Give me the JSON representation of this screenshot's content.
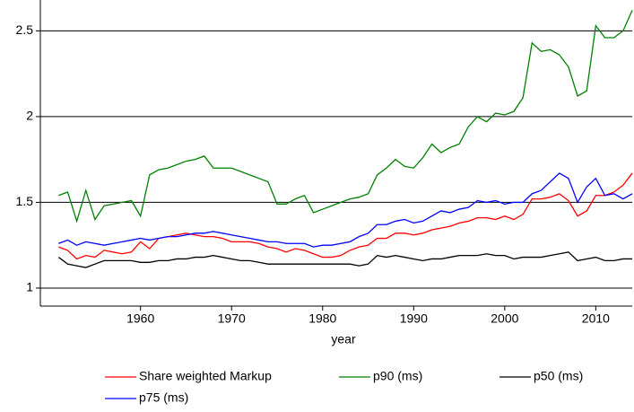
{
  "chart_data": {
    "type": "line",
    "x_label": "year",
    "x": [
      1951,
      1952,
      1953,
      1954,
      1955,
      1956,
      1957,
      1958,
      1959,
      1960,
      1961,
      1962,
      1963,
      1964,
      1965,
      1966,
      1967,
      1968,
      1969,
      1970,
      1971,
      1972,
      1973,
      1974,
      1975,
      1976,
      1977,
      1978,
      1979,
      1980,
      1981,
      1982,
      1983,
      1984,
      1985,
      1986,
      1987,
      1988,
      1989,
      1990,
      1991,
      1992,
      1993,
      1994,
      1995,
      1996,
      1997,
      1998,
      1999,
      2000,
      2001,
      2002,
      2003,
      2004,
      2005,
      2006,
      2007,
      2008,
      2009,
      2010,
      2011,
      2012,
      2013,
      2014
    ],
    "series": [
      {
        "name": "Share weighted Markup",
        "color": "#ff0000",
        "values": [
          1.24,
          1.22,
          1.17,
          1.19,
          1.18,
          1.22,
          1.21,
          1.2,
          1.21,
          1.27,
          1.23,
          1.29,
          1.3,
          1.31,
          1.32,
          1.31,
          1.3,
          1.3,
          1.29,
          1.27,
          1.27,
          1.27,
          1.26,
          1.24,
          1.23,
          1.21,
          1.23,
          1.22,
          1.2,
          1.18,
          1.18,
          1.19,
          1.22,
          1.24,
          1.25,
          1.29,
          1.29,
          1.32,
          1.32,
          1.31,
          1.32,
          1.34,
          1.35,
          1.36,
          1.38,
          1.39,
          1.41,
          1.41,
          1.4,
          1.42,
          1.4,
          1.43,
          1.52,
          1.52,
          1.53,
          1.55,
          1.51,
          1.42,
          1.45,
          1.54,
          1.54,
          1.56,
          1.6,
          1.67
        ]
      },
      {
        "name": "p90 (ms)",
        "color": "#008000",
        "values": [
          1.54,
          1.56,
          1.39,
          1.57,
          1.4,
          1.48,
          1.49,
          1.5,
          1.51,
          1.42,
          1.66,
          1.69,
          1.7,
          1.72,
          1.74,
          1.75,
          1.77,
          1.7,
          1.7,
          1.7,
          1.68,
          1.66,
          1.64,
          1.62,
          1.49,
          1.49,
          1.52,
          1.54,
          1.44,
          1.46,
          1.48,
          1.5,
          1.52,
          1.53,
          1.55,
          1.66,
          1.7,
          1.75,
          1.71,
          1.7,
          1.76,
          1.84,
          1.79,
          1.82,
          1.84,
          1.94,
          2.0,
          1.97,
          2.02,
          2.01,
          2.03,
          2.11,
          2.43,
          2.38,
          2.39,
          2.36,
          2.29,
          2.12,
          2.15,
          2.53,
          2.46,
          2.46,
          2.5,
          2.62
        ]
      },
      {
        "name": "p50 (ms)",
        "color": "#000000",
        "values": [
          1.18,
          1.14,
          1.13,
          1.12,
          1.14,
          1.16,
          1.16,
          1.16,
          1.16,
          1.15,
          1.15,
          1.16,
          1.16,
          1.17,
          1.17,
          1.18,
          1.18,
          1.19,
          1.18,
          1.17,
          1.16,
          1.16,
          1.15,
          1.14,
          1.14,
          1.14,
          1.14,
          1.14,
          1.14,
          1.14,
          1.14,
          1.14,
          1.14,
          1.13,
          1.14,
          1.19,
          1.18,
          1.19,
          1.18,
          1.17,
          1.16,
          1.17,
          1.17,
          1.18,
          1.19,
          1.19,
          1.19,
          1.2,
          1.19,
          1.19,
          1.17,
          1.18,
          1.18,
          1.18,
          1.19,
          1.2,
          1.21,
          1.16,
          1.17,
          1.18,
          1.16,
          1.16,
          1.17,
          1.17
        ]
      },
      {
        "name": "p75 (ms)",
        "color": "#0000ff",
        "values": [
          1.26,
          1.28,
          1.25,
          1.27,
          1.26,
          1.25,
          1.26,
          1.27,
          1.28,
          1.29,
          1.28,
          1.29,
          1.3,
          1.3,
          1.31,
          1.32,
          1.32,
          1.33,
          1.32,
          1.31,
          1.3,
          1.29,
          1.28,
          1.27,
          1.27,
          1.26,
          1.26,
          1.26,
          1.24,
          1.25,
          1.25,
          1.26,
          1.27,
          1.3,
          1.32,
          1.37,
          1.37,
          1.39,
          1.4,
          1.38,
          1.39,
          1.42,
          1.45,
          1.44,
          1.46,
          1.47,
          1.51,
          1.5,
          1.51,
          1.49,
          1.5,
          1.5,
          1.55,
          1.57,
          1.62,
          1.67,
          1.64,
          1.5,
          1.59,
          1.64,
          1.54,
          1.55,
          1.52,
          1.55
        ]
      }
    ],
    "xlim": [
      1949,
      2014
    ],
    "xticks": [
      1960,
      1970,
      1980,
      1990,
      2000,
      2010
    ],
    "ylim": [
      0.895,
      2.68
    ],
    "yticks": [
      1,
      1.5,
      2,
      2.5
    ],
    "grid": true,
    "legend": "bottom"
  }
}
